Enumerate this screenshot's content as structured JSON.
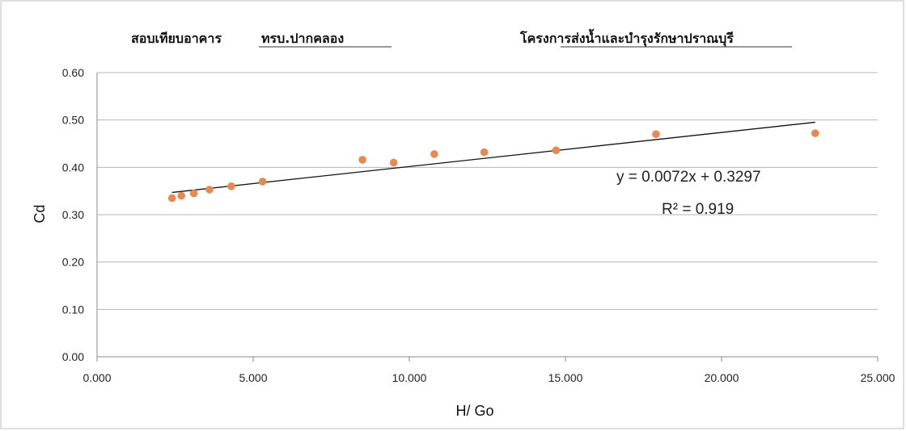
{
  "header": {
    "left_prefix": "สอบเทียบอาคาร",
    "left_station": "ทรบ.ปากคลอง",
    "right_project": "โครงการส่งน้ำและบำรุงรักษาปราณบุรี"
  },
  "chart_data": {
    "type": "scatter",
    "title": "",
    "xlabel": "H/ Go",
    "ylabel": "Cd",
    "xlim": [
      0,
      25
    ],
    "ylim": [
      0,
      0.6
    ],
    "xticks": [
      0,
      5,
      10,
      15,
      20,
      25
    ],
    "xtick_labels": [
      "0.000",
      "5.000",
      "10.000",
      "15.000",
      "20.000",
      "25.000"
    ],
    "yticks": [
      0,
      0.1,
      0.2,
      0.3,
      0.4,
      0.5,
      0.6
    ],
    "ytick_labels": [
      "0.00",
      "0.10",
      "0.20",
      "0.30",
      "0.40",
      "0.50",
      "0.60"
    ],
    "grid": "horizontal",
    "series": [
      {
        "color": "#E8894F",
        "points": [
          {
            "x": 2.4,
            "y": 0.335
          },
          {
            "x": 2.7,
            "y": 0.34
          },
          {
            "x": 3.1,
            "y": 0.345
          },
          {
            "x": 3.6,
            "y": 0.353
          },
          {
            "x": 4.3,
            "y": 0.36
          },
          {
            "x": 5.3,
            "y": 0.37
          },
          {
            "x": 8.5,
            "y": 0.416
          },
          {
            "x": 9.5,
            "y": 0.41
          },
          {
            "x": 10.8,
            "y": 0.428
          },
          {
            "x": 12.4,
            "y": 0.432
          },
          {
            "x": 14.7,
            "y": 0.436
          },
          {
            "x": 17.9,
            "y": 0.47
          },
          {
            "x": 23.0,
            "y": 0.472
          }
        ]
      }
    ],
    "trendline": {
      "slope": 0.0072,
      "intercept": 0.3297,
      "x_range": [
        2.4,
        23.0
      ],
      "color": "#111111"
    },
    "annotations": {
      "equation": "y = 0.0072x + 0.3297",
      "r_squared": "R² = 0.919"
    }
  }
}
